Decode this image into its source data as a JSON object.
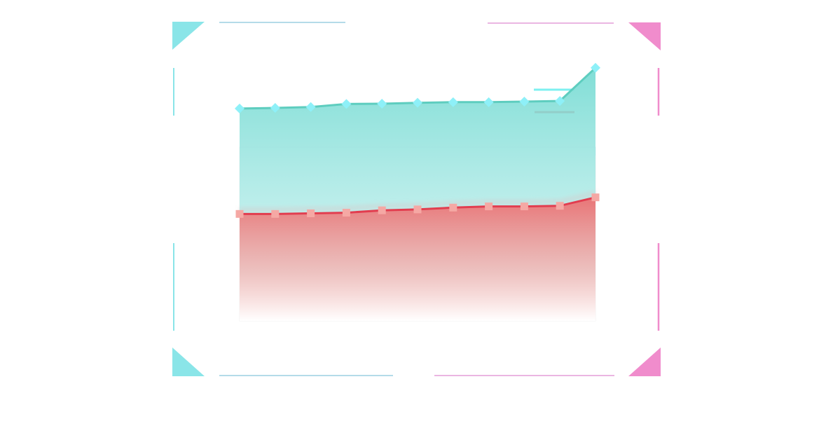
{
  "colors": {
    "frame_left": "#8ae5e8",
    "frame_right": "#f08ccc",
    "series_a_line": "#5ecdbf",
    "series_a_marker": "#8ef0f8",
    "series_a_fill_top": "#7adcd4",
    "series_b_line": "#e23d4f",
    "series_b_marker": "#f5a8a4",
    "series_b_fill_top": "#ec6e70",
    "legend_a": "#7ef0f0",
    "legend_b": "#e6404e"
  },
  "chart_data": {
    "type": "area",
    "x": [
      1,
      2,
      3,
      4,
      5,
      6,
      7,
      8,
      9,
      10,
      11
    ],
    "ylim": [
      0,
      100
    ],
    "grid": false,
    "legend_position": "top-right",
    "series": [
      {
        "key": "a",
        "values": [
          70.5,
          70.7,
          71.0,
          72.0,
          72.1,
          72.4,
          72.6,
          72.6,
          72.8,
          73.0,
          84.0
        ],
        "marker": "diamond"
      },
      {
        "key": "b",
        "values": [
          35.5,
          35.5,
          35.7,
          35.9,
          36.7,
          37.0,
          37.6,
          38.0,
          38.0,
          38.2,
          41.0
        ],
        "marker": "square"
      }
    ]
  }
}
